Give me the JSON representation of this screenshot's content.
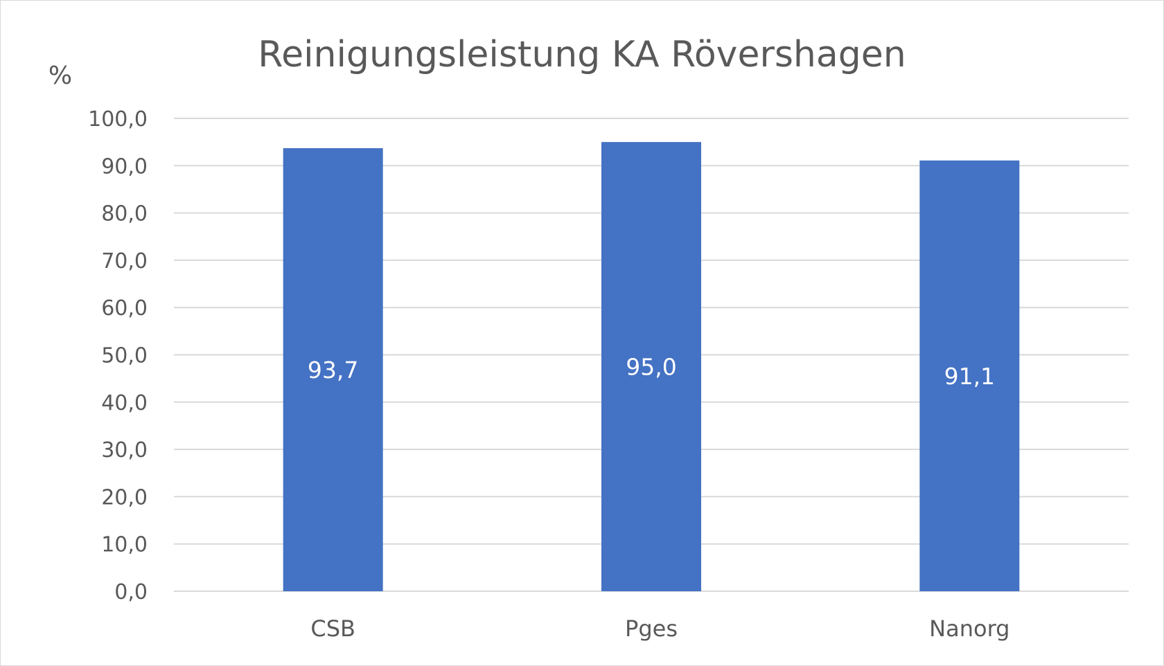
{
  "chart_data": {
    "type": "bar",
    "title": "Reinigungsleistung KA Rövershagen",
    "unit_label": "%",
    "xlabel": "",
    "ylabel": "",
    "categories": [
      "CSB",
      "Pges",
      "Nanorg"
    ],
    "values": [
      93.7,
      95.0,
      91.1
    ],
    "data_labels": [
      "93,7",
      "95,0",
      "91,1"
    ],
    "ylim": [
      0,
      100
    ],
    "ytick_values": [
      0,
      10,
      20,
      30,
      40,
      50,
      60,
      70,
      80,
      90,
      100
    ],
    "ytick_labels": [
      "0,0",
      "10,0",
      "20,0",
      "30,0",
      "40,0",
      "50,0",
      "60,0",
      "70,0",
      "80,0",
      "90,0",
      "100,0"
    ],
    "grid": true,
    "legend": "none",
    "colors": {
      "bar": "#4472C4",
      "grid": "#d9d9d9",
      "text": "#595959",
      "data_label": "#ffffff"
    }
  }
}
